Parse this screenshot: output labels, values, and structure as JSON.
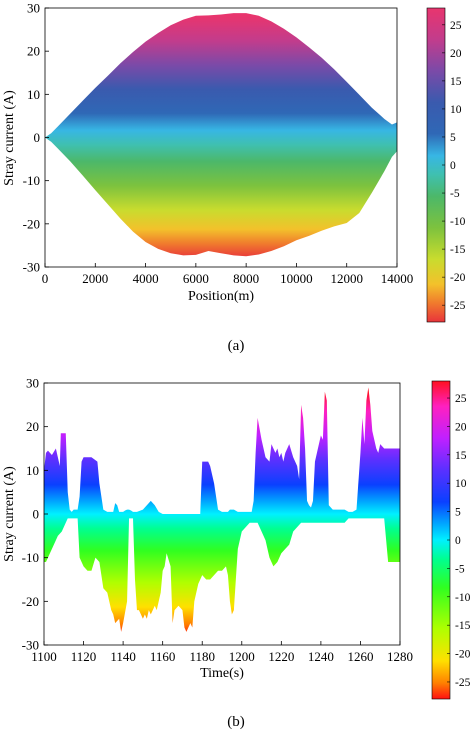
{
  "chart_data": [
    {
      "panel_label": "(a)",
      "type": "area",
      "xlabel": "Position(m)",
      "ylabel": "Stray current (A)",
      "xlim": [
        0,
        14000
      ],
      "ylim": [
        -30,
        30
      ],
      "xticks": [
        0,
        2000,
        4000,
        6000,
        8000,
        10000,
        12000,
        14000
      ],
      "yticks": [
        -30,
        -20,
        -10,
        0,
        10,
        20,
        30
      ],
      "colorbar_ticks": [
        25,
        20,
        15,
        10,
        5,
        0,
        -5,
        -10,
        -15,
        -20,
        -25
      ],
      "colorbar_range": [
        -28,
        28
      ],
      "upper": {
        "x": [
          0,
          250,
          500,
          1000,
          1500,
          2000,
          2500,
          3000,
          3500,
          4000,
          4500,
          5000,
          5500,
          6000,
          6500,
          7000,
          7500,
          8000,
          8500,
          9000,
          9500,
          10000,
          10500,
          11000,
          11500,
          12000,
          12500,
          13000,
          13500,
          13800,
          14000
        ],
        "y": [
          0,
          1,
          2.5,
          5.5,
          8.5,
          11.5,
          14.3,
          17.2,
          19.8,
          22.2,
          24.2,
          26,
          27.3,
          28.2,
          28.3,
          28.5,
          28.8,
          28.8,
          28.2,
          26.9,
          25.2,
          23.2,
          20.9,
          18.5,
          15.8,
          12.9,
          9.9,
          6.9,
          4.3,
          3,
          3.5
        ]
      },
      "lower": {
        "x": [
          0,
          250,
          500,
          1000,
          1500,
          2000,
          2500,
          3000,
          3500,
          4000,
          4500,
          5000,
          5500,
          6000,
          6500,
          7000,
          7500,
          8000,
          8500,
          9000,
          9500,
          10000,
          10500,
          11000,
          11500,
          12000,
          12500,
          13000,
          13500,
          13800,
          14000
        ],
        "y": [
          0,
          -1,
          -2.5,
          -5.5,
          -8.8,
          -12.2,
          -15.5,
          -18.8,
          -21.8,
          -24.2,
          -25.8,
          -26.8,
          -27.3,
          -27.2,
          -26.3,
          -26.8,
          -27.3,
          -27.5,
          -27.1,
          -26.3,
          -25.2,
          -23.8,
          -22.8,
          -21.6,
          -20.6,
          -19.8,
          -17.5,
          -12.8,
          -7.8,
          -4.5,
          -3.2
        ]
      }
    },
    {
      "panel_label": "(b)",
      "type": "area",
      "xlabel": "Time(s)",
      "ylabel": "Stray current (A)",
      "xlim": [
        1100,
        1280
      ],
      "ylim": [
        -30,
        30
      ],
      "xticks": [
        1100,
        1120,
        1140,
        1160,
        1180,
        1200,
        1220,
        1240,
        1260,
        1280
      ],
      "yticks": [
        -30,
        -20,
        -10,
        0,
        10,
        20,
        30
      ],
      "colorbar_ticks": [
        25,
        20,
        15,
        10,
        5,
        0,
        -5,
        -10,
        -15,
        -20,
        -25
      ],
      "colorbar_range": [
        -28,
        28
      ],
      "upper": {
        "x": [
          1100,
          1101,
          1102,
          1104,
          1106,
          1108,
          1108.5,
          1111,
          1112,
          1113,
          1114,
          1115,
          1117,
          1118,
          1119,
          1120,
          1124,
          1127,
          1128,
          1130,
          1132,
          1135,
          1136,
          1137,
          1138,
          1140,
          1141,
          1142,
          1143,
          1144,
          1145,
          1147,
          1150,
          1152,
          1154,
          1156,
          1158,
          1160,
          1162,
          1165,
          1170,
          1175,
          1178,
          1179,
          1180,
          1183,
          1184,
          1186,
          1188,
          1190,
          1192,
          1193,
          1194,
          1195,
          1196,
          1198,
          1200,
          1201,
          1203,
          1205,
          1206,
          1207,
          1208,
          1210,
          1212,
          1214,
          1215,
          1216,
          1217,
          1218,
          1219,
          1220,
          1221,
          1222,
          1224,
          1226,
          1228,
          1229,
          1230,
          1231,
          1232,
          1233,
          1234,
          1235,
          1236,
          1237,
          1238,
          1239,
          1240,
          1241,
          1242,
          1243,
          1244,
          1246,
          1248,
          1250,
          1252,
          1254,
          1256,
          1258,
          1260,
          1261,
          1262,
          1263,
          1264,
          1265,
          1266,
          1267,
          1268,
          1269,
          1270,
          1272,
          1274,
          1276,
          1278,
          1280
        ],
        "y": [
          10,
          14,
          14.5,
          13.5,
          15,
          11,
          18.5,
          18.5,
          5,
          1,
          0.5,
          1,
          1,
          4,
          12,
          13,
          13,
          12,
          7,
          1,
          0.5,
          0.5,
          2.5,
          2,
          0.5,
          0.5,
          0.8,
          1,
          1,
          0.8,
          0.5,
          0.5,
          1,
          2,
          3,
          2,
          0.5,
          0,
          0,
          0,
          0,
          0,
          0,
          0,
          12,
          12,
          11,
          7,
          1,
          0.5,
          0.5,
          0.5,
          1,
          1,
          1,
          0.5,
          0.5,
          0.5,
          0.5,
          0.5,
          3,
          14,
          22,
          17,
          13,
          12,
          16,
          15,
          14,
          15,
          13,
          14,
          12,
          14,
          16,
          13,
          11,
          8,
          25,
          22,
          15,
          3,
          2,
          1.5,
          3,
          12,
          14,
          16,
          18,
          17,
          28,
          26,
          2,
          1,
          1,
          1,
          1,
          0.5,
          0.5,
          1,
          14,
          22,
          16,
          26,
          29,
          25,
          19,
          17,
          15,
          14,
          16,
          15,
          15,
          15,
          15,
          15
        ]
      },
      "lower": {
        "x": [
          1100,
          1101,
          1103,
          1105,
          1107,
          1109,
          1110,
          1111,
          1112,
          1113,
          1114,
          1115,
          1116,
          1117,
          1118,
          1120,
          1122,
          1124,
          1126,
          1128,
          1129,
          1130,
          1132,
          1134,
          1135,
          1136,
          1138,
          1139,
          1140,
          1142,
          1143,
          1144,
          1145,
          1146,
          1147,
          1148,
          1149,
          1150,
          1151,
          1152,
          1153,
          1154,
          1155,
          1156,
          1157,
          1158,
          1159,
          1160,
          1161,
          1162,
          1164,
          1165,
          1166,
          1168,
          1170,
          1171,
          1172,
          1173,
          1174,
          1175,
          1176,
          1178,
          1180,
          1182,
          1184,
          1186,
          1188,
          1190,
          1192,
          1193,
          1194,
          1195,
          1196,
          1197,
          1198,
          1200,
          1202,
          1204,
          1206,
          1208,
          1210,
          1212,
          1214,
          1216,
          1218,
          1220,
          1222,
          1224,
          1226,
          1228,
          1230,
          1232,
          1234,
          1236,
          1238,
          1240,
          1242,
          1244,
          1246,
          1248,
          1250,
          1252,
          1254,
          1256,
          1258,
          1260,
          1262,
          1264,
          1266,
          1268,
          1270,
          1272,
          1274,
          1276,
          1278,
          1280
        ],
        "y": [
          -11,
          -11,
          -9,
          -7,
          -5,
          -4,
          -3,
          -2,
          -1,
          -1,
          -1,
          -1,
          -1,
          -1,
          -10,
          -12,
          -13,
          -13,
          -10,
          -11,
          -14,
          -17,
          -18,
          -22,
          -23,
          -25,
          -24,
          -27,
          -25,
          -20,
          -1,
          -1,
          -1,
          -15,
          -22,
          -22,
          -23,
          -24,
          -23,
          -24,
          -22,
          -23,
          -22,
          -21,
          -22,
          -20,
          -18,
          -13,
          -12,
          -9,
          -12,
          -25,
          -22,
          -21,
          -22,
          -26,
          -27,
          -26,
          -25,
          -26,
          -20,
          -16,
          -14,
          -15,
          -15,
          -14,
          -13,
          -13,
          -12,
          -14,
          -20,
          -23,
          -22,
          -15,
          -8,
          -4,
          -3,
          -2,
          -2,
          -2,
          -4,
          -6,
          -10,
          -12,
          -11,
          -9,
          -8,
          -7,
          -4,
          -3,
          -2,
          -2,
          -2,
          -2,
          -2,
          -2,
          -2,
          -2,
          -2,
          -2,
          -2,
          -2,
          -1,
          -1,
          -1,
          -1,
          -1,
          -1,
          -1,
          -1,
          -1,
          -1,
          -11,
          -11,
          -11,
          -11
        ]
      }
    }
  ]
}
